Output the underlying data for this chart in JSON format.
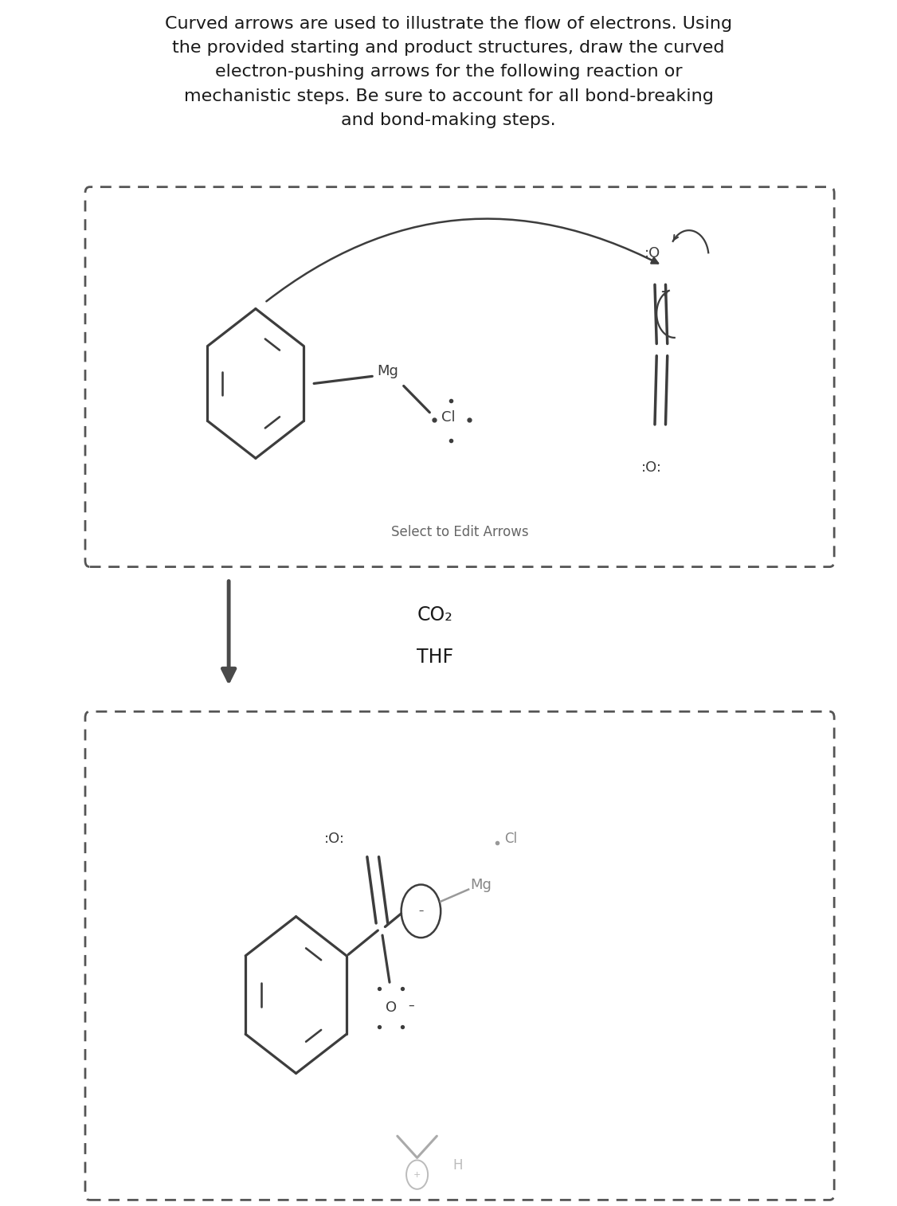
{
  "title_text": "Curved arrows are used to illustrate the flow of electrons. Using\nthe provided starting and product structures, draw the curved\nelectron-pushing arrows for the following reaction or\nmechanistic steps. Be sure to account for all bond-breaking\nand bond-making steps.",
  "title_fontsize": 16,
  "background_color": "#ffffff",
  "text_color": "#1a1a1a",
  "molecule_color": "#3d3d3d",
  "arrow_color": "#3d3d3d",
  "reaction_arrow_color": "#4a4a4a",
  "dashed_border_color": "#555555",
  "co2_label": "CO₂",
  "thf_label": "THF",
  "select_edit_label": "Select to Edit Arrows",
  "mg_label": "Mg",
  "cl_label": "Cl",
  "cl_label2": "Cl",
  "mg_label2": "Mg",
  "o_top_label": ":O",
  "o_bottom_label": ":O:",
  "o_left_label": ":O:",
  "h_label": "H",
  "fig_width": 11.26,
  "fig_height": 15.14,
  "dpi": 100
}
